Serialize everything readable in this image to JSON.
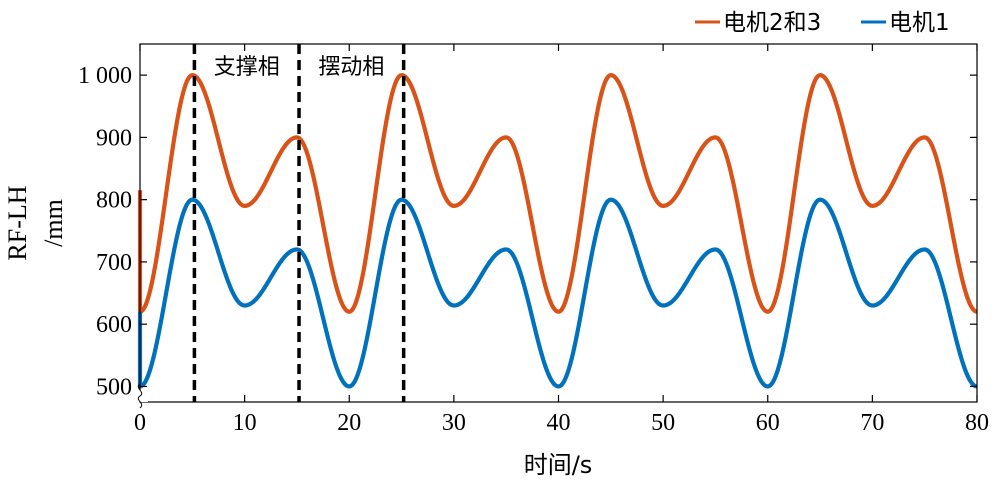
{
  "chart_data": {
    "type": "line",
    "xlabel": "时间/s",
    "ylabel_main": "RF-LH",
    "ylabel_unit": "/mm",
    "xlim": [
      0,
      80
    ],
    "ylim": [
      475,
      1050
    ],
    "x_ticks": [
      0,
      10,
      20,
      30,
      40,
      50,
      60,
      70,
      80
    ],
    "x_tick_labels": [
      "0",
      "10",
      "20",
      "30",
      "40",
      "50",
      "60",
      "70",
      "80"
    ],
    "y_ticks": [
      500,
      600,
      700,
      800,
      900,
      1000
    ],
    "y_tick_labels": [
      "500",
      "600",
      "700",
      "800",
      "900",
      "1 000"
    ],
    "axis_break": true,
    "grid": false,
    "legend_position": "top-right",
    "series": [
      {
        "name": "电机2和3",
        "color": "#d95319",
        "x": [
          0,
          5,
          10,
          15,
          20,
          25,
          30,
          35,
          40,
          45,
          50,
          55,
          60,
          65,
          70,
          75,
          80
        ],
        "y": [
          620,
          1000,
          790,
          900,
          620,
          1000,
          790,
          900,
          620,
          1000,
          790,
          900,
          620,
          1000,
          790,
          900,
          620
        ],
        "initial_jump_from": 815
      },
      {
        "name": "电机1",
        "color": "#0072bd",
        "x": [
          0,
          5,
          10,
          15,
          20,
          25,
          30,
          35,
          40,
          45,
          50,
          55,
          60,
          65,
          70,
          75,
          80
        ],
        "y": [
          500,
          800,
          630,
          720,
          500,
          800,
          630,
          720,
          500,
          800,
          630,
          720,
          500,
          800,
          630,
          720,
          500
        ],
        "initial_jump_from": 620
      }
    ],
    "vlines": [
      5.2,
      15.2,
      25.2
    ],
    "annotations": [
      {
        "text": "支撑相",
        "between": [
          5.2,
          15.2
        ]
      },
      {
        "text": "摆动相",
        "between": [
          15.2,
          25.2
        ]
      }
    ]
  }
}
